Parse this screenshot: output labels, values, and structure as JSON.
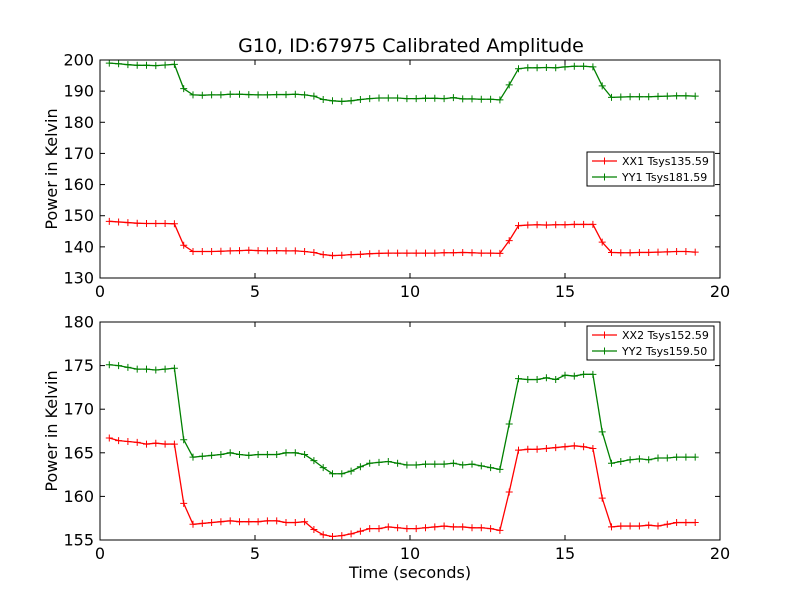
{
  "figure": {
    "title": "G10, ID:67975 Calibrated Amplitude"
  },
  "chart_data": [
    {
      "type": "line",
      "title": "G10, ID:67975 Calibrated Amplitude",
      "xlabel": "",
      "ylabel": "Power in Kelvin",
      "xlim": [
        0,
        20
      ],
      "ylim": [
        130,
        200
      ],
      "xticks": [
        0,
        5,
        10,
        15,
        20
      ],
      "yticks": [
        130,
        140,
        150,
        160,
        170,
        180,
        190,
        200
      ],
      "grid": false,
      "legend_position": "center-right",
      "x": [
        0.3,
        0.6,
        0.9,
        1.2,
        1.5,
        1.8,
        2.1,
        2.4,
        2.7,
        3.0,
        3.3,
        3.6,
        3.9,
        4.2,
        4.5,
        4.8,
        5.1,
        5.4,
        5.7,
        6.0,
        6.3,
        6.6,
        6.9,
        7.2,
        7.5,
        7.8,
        8.1,
        8.4,
        8.7,
        9.0,
        9.3,
        9.6,
        9.9,
        10.2,
        10.5,
        10.8,
        11.1,
        11.4,
        11.7,
        12.0,
        12.3,
        12.6,
        12.9,
        13.2,
        13.5,
        13.8,
        14.1,
        14.4,
        14.7,
        15.0,
        15.3,
        15.6,
        15.9,
        16.2,
        16.5,
        16.8,
        17.1,
        17.4,
        17.7,
        18.0,
        18.3,
        18.6,
        18.9,
        19.2
      ],
      "series": [
        {
          "name": "XX1 Tsys135.59",
          "color": "#ff0000",
          "values": [
            148.2,
            148.0,
            147.8,
            147.6,
            147.5,
            147.5,
            147.5,
            147.4,
            140.5,
            138.5,
            138.5,
            138.5,
            138.6,
            138.7,
            138.8,
            138.9,
            138.8,
            138.7,
            138.8,
            138.7,
            138.7,
            138.5,
            138.2,
            137.5,
            137.2,
            137.3,
            137.5,
            137.6,
            137.8,
            137.9,
            138.0,
            138.0,
            138.0,
            138.0,
            138.0,
            138.0,
            138.1,
            138.1,
            138.2,
            138.1,
            138.0,
            138.0,
            137.9,
            142.0,
            146.8,
            147.0,
            147.1,
            147.0,
            147.1,
            147.1,
            147.2,
            147.2,
            147.2,
            141.5,
            138.2,
            138.1,
            138.1,
            138.2,
            138.2,
            138.3,
            138.4,
            138.5,
            138.5,
            138.3
          ]
        },
        {
          "name": "YY1 Tsys181.59",
          "color": "#008000",
          "values": [
            199.0,
            198.8,
            198.5,
            198.3,
            198.3,
            198.2,
            198.4,
            198.6,
            190.8,
            188.8,
            188.7,
            188.8,
            188.8,
            189.0,
            189.0,
            188.9,
            188.8,
            188.8,
            188.9,
            188.9,
            189.0,
            188.8,
            188.4,
            187.3,
            186.9,
            186.7,
            186.9,
            187.3,
            187.6,
            187.8,
            187.8,
            187.8,
            187.6,
            187.6,
            187.7,
            187.7,
            187.6,
            187.9,
            187.5,
            187.5,
            187.4,
            187.4,
            187.2,
            192.0,
            197.2,
            197.5,
            197.5,
            197.6,
            197.5,
            197.8,
            198.0,
            198.0,
            197.8,
            191.7,
            188.0,
            188.1,
            188.2,
            188.2,
            188.2,
            188.3,
            188.4,
            188.5,
            188.5,
            188.4
          ]
        }
      ]
    },
    {
      "type": "line",
      "title": "",
      "xlabel": "Time (seconds)",
      "ylabel": "Power in Kelvin",
      "xlim": [
        0,
        20
      ],
      "ylim": [
        155,
        180
      ],
      "xticks": [
        0,
        5,
        10,
        15,
        20
      ],
      "yticks": [
        155,
        160,
        165,
        170,
        175,
        180
      ],
      "grid": false,
      "legend_position": "top-right",
      "x": [
        0.3,
        0.6,
        0.9,
        1.2,
        1.5,
        1.8,
        2.1,
        2.4,
        2.7,
        3.0,
        3.3,
        3.6,
        3.9,
        4.2,
        4.5,
        4.8,
        5.1,
        5.4,
        5.7,
        6.0,
        6.3,
        6.6,
        6.9,
        7.2,
        7.5,
        7.8,
        8.1,
        8.4,
        8.7,
        9.0,
        9.3,
        9.6,
        9.9,
        10.2,
        10.5,
        10.8,
        11.1,
        11.4,
        11.7,
        12.0,
        12.3,
        12.6,
        12.9,
        13.2,
        13.5,
        13.8,
        14.1,
        14.4,
        14.7,
        15.0,
        15.3,
        15.6,
        15.9,
        16.2,
        16.5,
        16.8,
        17.1,
        17.4,
        17.7,
        18.0,
        18.3,
        18.6,
        18.9,
        19.2
      ],
      "series": [
        {
          "name": "XX2 Tsys152.59",
          "color": "#ff0000",
          "values": [
            166.7,
            166.4,
            166.3,
            166.2,
            166.0,
            166.1,
            166.0,
            166.0,
            159.2,
            156.8,
            156.9,
            157.0,
            157.1,
            157.2,
            157.1,
            157.1,
            157.1,
            157.2,
            157.2,
            157.0,
            157.0,
            157.1,
            156.2,
            155.6,
            155.4,
            155.5,
            155.7,
            156.0,
            156.3,
            156.3,
            156.5,
            156.4,
            156.3,
            156.3,
            156.4,
            156.5,
            156.6,
            156.5,
            156.5,
            156.4,
            156.4,
            156.3,
            156.1,
            160.5,
            165.3,
            165.4,
            165.4,
            165.5,
            165.6,
            165.7,
            165.8,
            165.7,
            165.5,
            159.8,
            156.5,
            156.6,
            156.6,
            156.6,
            156.7,
            156.6,
            156.8,
            157.0,
            157.0,
            157.0
          ]
        },
        {
          "name": "YY2 Tsys159.50",
          "color": "#008000",
          "values": [
            175.1,
            175.0,
            174.8,
            174.6,
            174.6,
            174.5,
            174.6,
            174.7,
            166.5,
            164.5,
            164.6,
            164.7,
            164.8,
            165.0,
            164.8,
            164.7,
            164.8,
            164.8,
            164.8,
            165.0,
            165.0,
            164.8,
            164.1,
            163.3,
            162.6,
            162.6,
            162.9,
            163.4,
            163.8,
            163.9,
            164.0,
            163.8,
            163.6,
            163.6,
            163.7,
            163.7,
            163.7,
            163.8,
            163.6,
            163.7,
            163.5,
            163.3,
            163.1,
            168.3,
            173.5,
            173.4,
            173.4,
            173.6,
            173.4,
            173.9,
            173.8,
            174.0,
            174.0,
            167.4,
            163.8,
            164.0,
            164.2,
            164.3,
            164.2,
            164.4,
            164.4,
            164.5,
            164.5,
            164.5
          ]
        }
      ]
    }
  ]
}
